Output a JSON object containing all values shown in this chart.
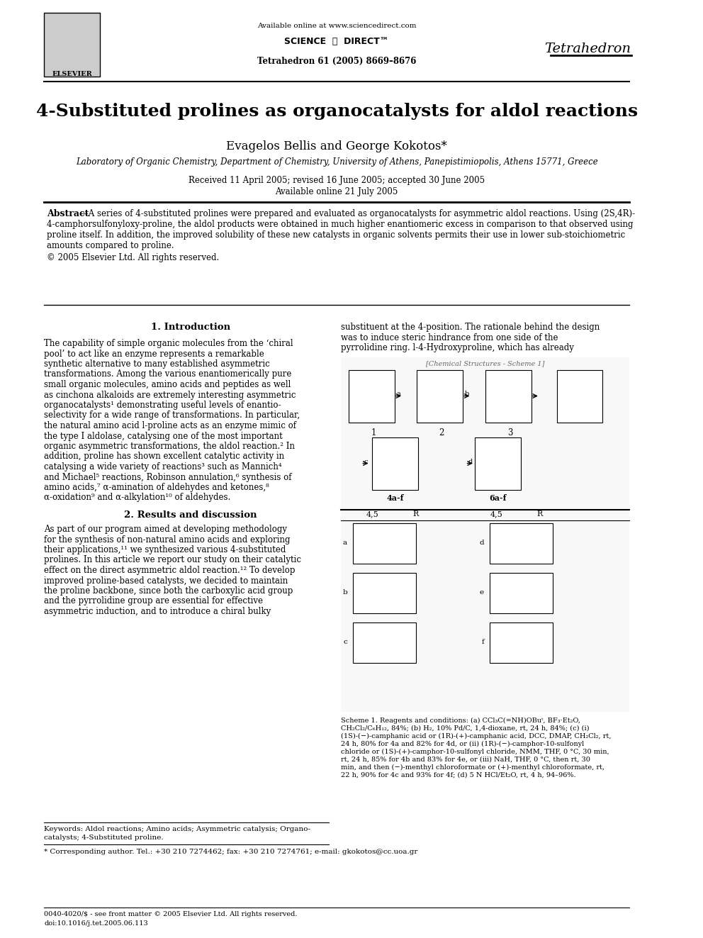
{
  "title": "4-Substituted prolines as organocatalysts for aldol reactions",
  "authors": "Evagelos Bellis and George Kokotos*",
  "affiliation": "Laboratory of Organic Chemistry, Department of Chemistry, University of Athens, Panepistimiopolis, Athens 15771, Greece",
  "received": "Received 11 April 2005; revised 16 June 2005; accepted 30 June 2005",
  "available_online": "Available online 21 July 2005",
  "journal_header": "Available online at www.sciencedirect.com",
  "journal_name": "SCIENCE ⓐ DIRECT™",
  "journal_title": "Tetrahedron",
  "journal_ref": "Tetrahedron 61 (2005) 8669–8676",
  "abstract_title": "Abstract",
  "abstract_text": "A series of 4-substituted prolines were prepared and evaluated as organocatalysts for asymmetric aldol reactions. Using (2S,4R)-4-camphorsulfonyloxy-proline, the aldol products were obtained in much higher enantiomeric excess in comparison to that observed using proline itself. In addition, the improved solubility of these new catalysts in organic solvents permits their use in lower sub-stoichiometric amounts compared to proline.\n© 2005 Elsevier Ltd. All rights reserved.",
  "section1_title": "1. Introduction",
  "section1_text": "The capability of simple organic molecules from the ‘chiral pool’ to act like an enzyme represents a remarkable synthetic alternative to many established asymmetric transformations. Among the various enantiomerically pure small organic molecules, amino acids and peptides as well as cinchona alkaloids are extremely interesting asymmetric organocatalysts¹ demonstrating useful levels of enantio-selectivity for a wide range of transformations. In particular, the natural amino acid l-proline acts as an enzyme mimic of the type I aldolase, catalysing one of the most important organic asymmetric transformations, the aldol reaction.² In addition, proline has shown excellent catalytic activity in catalysing a wide variety of reactions³ such as Mannich⁴ and Michael⁵ reactions, Robinson annulation,⁶ synthesis of amino acids,⁷ α-amination of aldehydes and ketones,⁸ α-oxidation⁹ and α-alkylation¹⁰ of aldehydes.",
  "section1_right_text": "substituent at the 4-position. The rationale behind the design was to induce steric hindrance from one side of the pyrrolidine ring. l-4-Hydroxyproline, which has already",
  "section2_title": "2. Results and discussion",
  "section2_text": "As part of our program aimed at developing methodology for the synthesis of non-natural amino acids and exploring their applications,¹¹ we synthesized various 4-substituted prolines. In this article we report our study on their catalytic effect on the direct asymmetric aldol reaction.¹² To develop improved proline-based catalysts, we decided to maintain the proline backbone, since both the carboxylic acid group and the pyrrolidine group are essential for effective asymmetric induction, and to introduce a chiral bulky",
  "keywords": "Keywords: Aldol reactions; Amino acids; Asymmetric catalysis; Organocatalysts; 4-Substituted proline.",
  "corresponding": "* Corresponding author. Tel.: +30 210 7274462; fax: +30 210 7274761; e-mail: gkokotos@cc.uoa.gr",
  "footer1": "0040-4020/$ - see front matter © 2005 Elsevier Ltd. All rights reserved.",
  "footer2": "doi:10.1016/j.tet.2005.06.113",
  "scheme_caption": "Scheme 1. Reagents and conditions: (a) CCl₃C(=NH)OBuᵗ, BF₃·Et₂O, CH₂Cl₂/C₆H₁₂, 84%; (b) H₂, 10% Pd/C, 1,4-dioxane, rt, 24 h, 84%; (c) (i) (1S)-(−)-camphanic acid or (1R)-(+)-camphanic acid, DCC, DMAP, CH₂Cl₂, rt, 24 h, 80% for 4a and 82% for 4d, or (ii) (1R)-(−)-camphor-10-sulfonyl chloride or (1S)-(+)-camphor-10-sulfonyl chloride, NMM, THF, 0 °C, 30 min, rt, 24 h, 85% for 4b and 83% for 4e, or (iii) NaH, THF, 0 °C, then rt, 30 min, and then (−)-menthyl chloroformate or (+)-menthyl chloroformate, rt, 22 h, 90% for 4c and 93% for 4f; (d) 5 N HCl/Et₂O, rt, 4 h, 94–96%.",
  "bg_color": "#ffffff",
  "text_color": "#000000",
  "border_color": "#000000"
}
